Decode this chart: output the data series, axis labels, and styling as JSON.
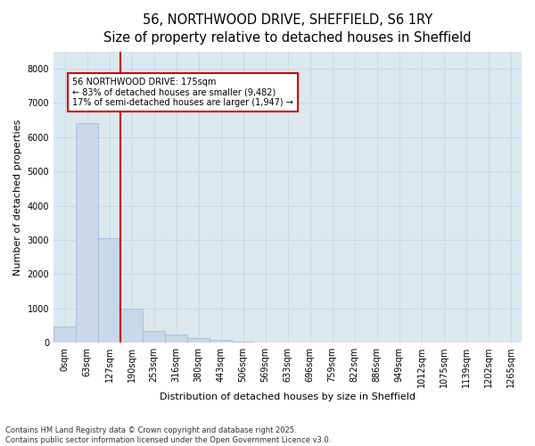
{
  "title_line1": "56, NORTHWOOD DRIVE, SHEFFIELD, S6 1RY",
  "title_line2": "Size of property relative to detached houses in Sheffield",
  "xlabel": "Distribution of detached houses by size in Sheffield",
  "ylabel": "Number of detached properties",
  "bar_color": "#c8d8e8",
  "bar_edge_color": "#9ab8cc",
  "grid_color": "#c8d4e0",
  "bg_color": "#dce8f0",
  "vline_color": "#cc0000",
  "vline_x": 3.0,
  "annotation_text": "56 NORTHWOOD DRIVE: 175sqm\n← 83% of detached houses are smaller (9,482)\n17% of semi-detached houses are larger (1,947) →",
  "annotation_box_color": "#cc0000",
  "categories": [
    "0sqm",
    "63sqm",
    "127sqm",
    "190sqm",
    "253sqm",
    "316sqm",
    "380sqm",
    "443sqm",
    "506sqm",
    "569sqm",
    "633sqm",
    "696sqm",
    "759sqm",
    "822sqm",
    "886sqm",
    "949sqm",
    "1012sqm",
    "1075sqm",
    "1139sqm",
    "1202sqm",
    "1265sqm"
  ],
  "values": [
    480,
    6400,
    3050,
    1000,
    330,
    230,
    130,
    80,
    20,
    0,
    0,
    0,
    0,
    0,
    0,
    0,
    0,
    0,
    0,
    0,
    0
  ],
  "ylim": [
    0,
    8500
  ],
  "yticks": [
    0,
    1000,
    2000,
    3000,
    4000,
    5000,
    6000,
    7000,
    8000
  ],
  "footnote": "Contains HM Land Registry data © Crown copyright and database right 2025.\nContains public sector information licensed under the Open Government Licence v3.0.",
  "title_fontsize": 10.5,
  "label_fontsize": 8,
  "tick_fontsize": 7,
  "footnote_fontsize": 6
}
